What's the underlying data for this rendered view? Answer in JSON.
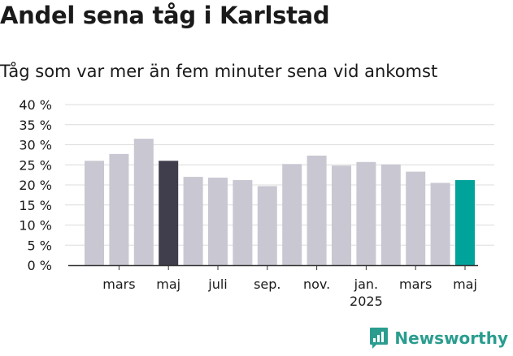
{
  "title": "Andel sena tåg i Karlstad",
  "subtitle": "Tåg som var mer än fem minuter sena vid ankomst",
  "brand": "Newsworthy",
  "colors": {
    "bar": "#c9c7d2",
    "highlight_dark": "#403e4c",
    "highlight_accent": "#00a39a",
    "grid": "#dcdcdc",
    "axis": "#333333",
    "text": "#1a1a1a",
    "brand": "#2a9d8f"
  },
  "chart_data": {
    "type": "bar",
    "title": "Andel sena tåg i Karlstad",
    "subtitle": "Tåg som var mer än fem minuter sena vid ankomst",
    "categories": [
      "2024-02",
      "2024-03",
      "2024-04",
      "2024-05",
      "2024-06",
      "2024-07",
      "2024-08",
      "2024-09",
      "2024-10",
      "2024-11",
      "2024-12",
      "2025-01",
      "2025-02",
      "2025-03",
      "2025-04",
      "2025-05"
    ],
    "values": [
      26,
      27.7,
      31.5,
      26,
      22,
      21.8,
      21.2,
      19.7,
      25.2,
      27.3,
      24.8,
      25.7,
      25.1,
      23.3,
      20.5,
      21.2
    ],
    "highlight": {
      "2024-05": "dark",
      "2025-05": "accent"
    },
    "x_tick_labels": [
      {
        "category": "2024-03",
        "label": "mars"
      },
      {
        "category": "2024-05",
        "label": "maj"
      },
      {
        "category": "2024-07",
        "label": "juli"
      },
      {
        "category": "2024-09",
        "label": "sep."
      },
      {
        "category": "2024-11",
        "label": "nov."
      },
      {
        "category": "2025-01",
        "label": "jan.",
        "sublabel": "2025"
      },
      {
        "category": "2025-03",
        "label": "mars"
      },
      {
        "category": "2025-05",
        "label": "maj"
      }
    ],
    "y_ticks": [
      "0 %",
      "5 %",
      "10 %",
      "15 %",
      "20 %",
      "25 %",
      "30 %",
      "35 %",
      "40 %"
    ],
    "ylim": [
      0,
      40
    ],
    "xlabel": "",
    "ylabel": "",
    "grid": true,
    "legend": "none"
  }
}
